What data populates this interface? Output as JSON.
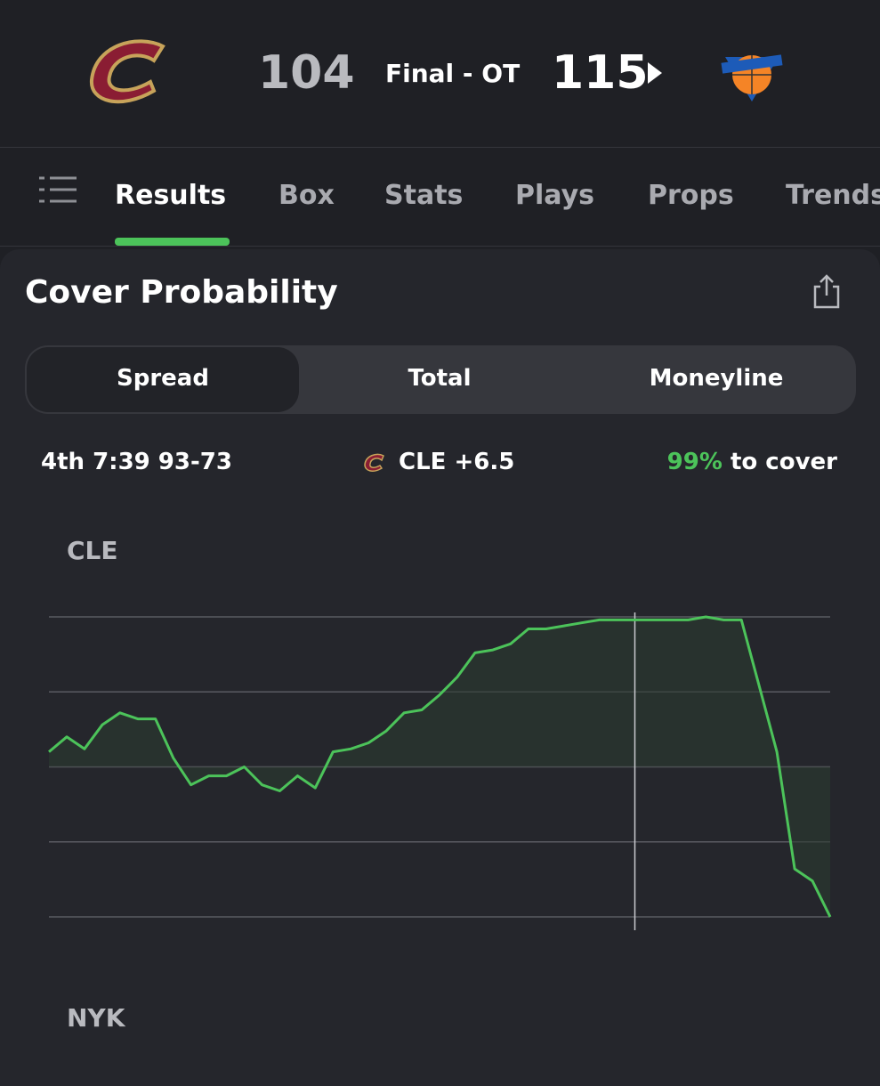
{
  "header": {
    "away_score": 104,
    "status": "Final - OT",
    "home_score": 115
  },
  "tabs": [
    "Results",
    "Box",
    "Stats",
    "Plays",
    "Props",
    "Trends"
  ],
  "card": {
    "title": "Cover Probability",
    "segments": [
      "Spread",
      "Total",
      "Moneyline"
    ],
    "info": {
      "moment": "4th 7:39 93-73",
      "line": "CLE +6.5",
      "probability": "99%",
      "probability_text": "to cover"
    }
  },
  "chart_data": {
    "type": "line",
    "top_label": "CLE",
    "bottom_label": "NYK",
    "color": "#4cc35a",
    "values": [
      55,
      60,
      56,
      64,
      68,
      66,
      66,
      53,
      44,
      47,
      47,
      50,
      44,
      42,
      47,
      43,
      55,
      56,
      58,
      62,
      68,
      69,
      74,
      80,
      88,
      89,
      91,
      96,
      96,
      97,
      98,
      99,
      99,
      99,
      99,
      99,
      99,
      100,
      99,
      99,
      77,
      55,
      16,
      12,
      0
    ],
    "ylim": [
      0,
      100
    ],
    "yticks": [
      0,
      25,
      50,
      75,
      100
    ],
    "grid": true
  }
}
